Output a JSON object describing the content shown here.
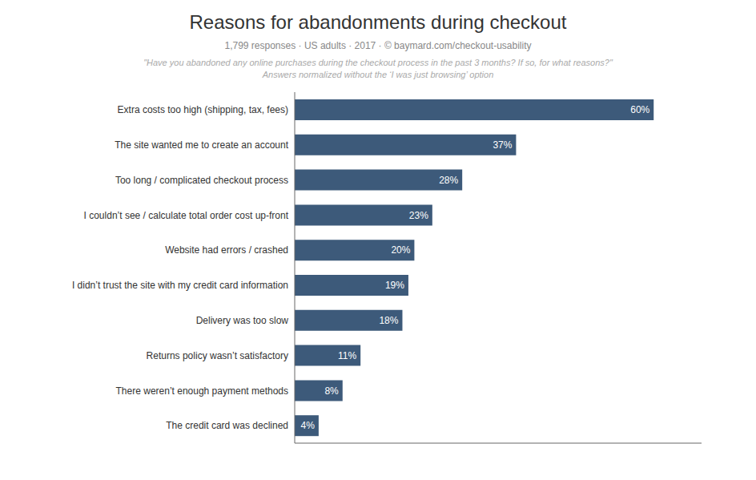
{
  "chart_data": {
    "type": "bar",
    "orientation": "horizontal",
    "title": "Reasons for abandonments during checkout",
    "subtitle": "1,799 responses  ·  US adults  ·  2017  ·  ©  baymard.com/checkout-usability",
    "annotations": [
      "\"Have you abandoned any online purchases during the checkout process in the past 3 months? If so, for what reasons?\"",
      "Answers normalized without the ‘I was just browsing’ option"
    ],
    "categories": [
      "The credit card was declined",
      "There weren’t enough payment methods",
      "Returns policy wasn’t satisfactory",
      "Delivery was too slow",
      "I didn’t trust the site with my credit card information",
      "Website had errors / crashed",
      "I couldn’t see / calculate total order cost up-front",
      "Too long / complicated checkout process",
      "The site wanted me to create an account",
      "Extra costs too high (shipping, tax, fees)"
    ],
    "values": [
      4,
      8,
      11,
      18,
      19,
      20,
      23,
      28,
      37,
      60
    ],
    "value_labels": [
      "4%",
      "8%",
      "11%",
      "18%",
      "19%",
      "20%",
      "23%",
      "28%",
      "37%",
      "60%"
    ],
    "data_labels": true,
    "color": "#3d5a7a",
    "xlim": [
      0,
      68
    ],
    "tick_labels": "y",
    "grid": false
  }
}
